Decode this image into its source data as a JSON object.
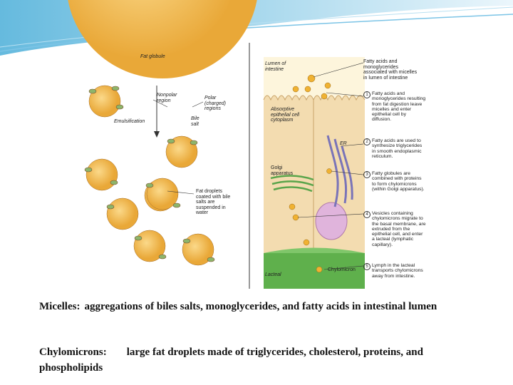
{
  "left_panel": {
    "labels": [
      "Fat globule",
      "Nonpolar region",
      "Polar (charged) regions",
      "Bile salt",
      "Emulsification",
      "Fat droplets coated with bile salts are suspended in water"
    ]
  },
  "right_panel": {
    "lumen_label": "Lumen of intestine",
    "micelle_label": "Fatty acids and monoglycerides associated with micelles in lumen of intestine",
    "cell_label": "Absorptive epithelial cell cytoplasm",
    "er_label": "ER",
    "golgi_label": "Golgi apparatus",
    "lacteal_label": "Lacteal",
    "chylomicron_label": "Chylomicron",
    "steps": [
      {
        "number": "1",
        "text": "Fatty acids and monoglycerides resulting from fat digestion leave micelles and enter epithelial cell by diffusion."
      },
      {
        "number": "2",
        "text": "Fatty acids are used to synthesize triglycerides in smooth endoplasmic reticulum."
      },
      {
        "number": "3",
        "text": "Fatty globules are combined with proteins to form chylomicrons (within Golgi apparatus)."
      },
      {
        "number": "4",
        "text": "Vesicles containing chylomicrons migrate to the basal membrane, are extruded from the epithelial cell, and enter a lacteal (lymphatic capillary)."
      },
      {
        "number": "5",
        "text": "Lymph in the lacteal transports chylomicrons away from intestine."
      }
    ]
  },
  "captions": [
    {
      "term": "Micelles:",
      "text": "aggregations of biles salts, monoglycerides, and fatty acids in intestinal lumen"
    },
    {
      "term": "Chylomicrons:",
      "text": "large fat droplets made of triglycerides, cholesterol, proteins, and phospholipids"
    }
  ]
}
